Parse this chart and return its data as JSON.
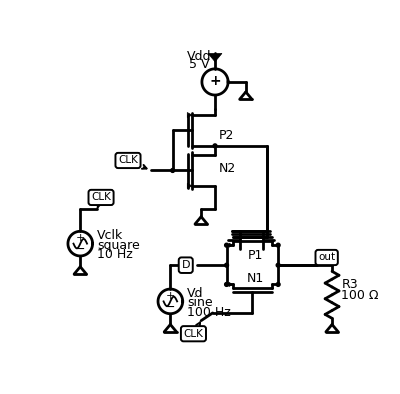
{
  "bg_color": "#ffffff",
  "line_color": "#000000",
  "lw": 2.0,
  "fs": 9,
  "vdd_text": [
    "Vdd",
    "5 V"
  ],
  "vclk_text": [
    "Vclk",
    "square",
    "10 Hz"
  ],
  "vd_text": [
    "Vd",
    "sine",
    "100 Hz"
  ],
  "r3_text": [
    "R3",
    "100 Ω"
  ],
  "p2_label": "P2",
  "n2_label": "N2",
  "p1_label": "P1",
  "n1_label": "N1",
  "clk_label": "CLK",
  "d_label": "D",
  "out_label": "out"
}
